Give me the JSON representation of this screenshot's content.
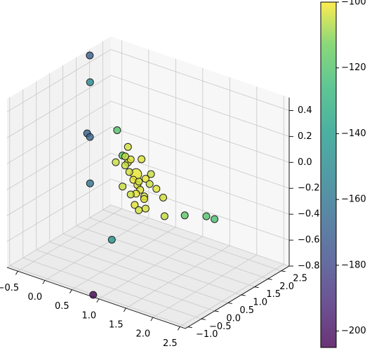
{
  "chart_data": {
    "type": "scatter",
    "projection": "3d",
    "title": "",
    "xlabel": "",
    "ylabel": "",
    "zlabel": "",
    "grid": true,
    "colormap": "viridis",
    "marker_edge_color": "#222222",
    "x_ticks": [
      "−0.5",
      "0.0",
      "0.5",
      "1.0",
      "1.5",
      "2.0",
      "2.5"
    ],
    "y_ticks": [
      "−1.0",
      "−0.5",
      "0.0",
      "0.5",
      "1.0",
      "1.5",
      "2.0",
      "2.5"
    ],
    "z_ticks": [
      "−0.8",
      "−0.6",
      "−0.4",
      "−0.2",
      "0.0",
      "0.2",
      "0.4"
    ],
    "xlim": [
      -0.7,
      2.6
    ],
    "ylim": [
      -1.1,
      2.8
    ],
    "zlim": [
      -0.8,
      0.5
    ],
    "colorbar": {
      "range": [
        -205,
        -100
      ],
      "ticks": [
        "−100",
        "−120",
        "−140",
        "−160",
        "−180",
        "−200"
      ],
      "tick_values": [
        -100,
        -120,
        -140,
        -160,
        -180,
        -200
      ]
    },
    "points": [
      {
        "x": -0.45,
        "y": 1.5,
        "z": 0.55,
        "c": -170,
        "s": 1
      },
      {
        "x": -0.05,
        "y": 0.7,
        "z": 0.5,
        "c": -150,
        "s": 1
      },
      {
        "x": 0.5,
        "y": 0.6,
        "z": 0.22,
        "c": -120,
        "s": 1
      },
      {
        "x": 0.55,
        "y": 0.7,
        "z": 0.02,
        "c": -118,
        "s": 1
      },
      {
        "x": -0.35,
        "y": 1.2,
        "z": 0.0,
        "c": -170,
        "s": 1
      },
      {
        "x": -0.3,
        "y": 1.2,
        "z": -0.02,
        "c": -168,
        "s": 1
      },
      {
        "x": -0.1,
        "y": 0.8,
        "z": -0.3,
        "c": -160,
        "s": 1
      },
      {
        "x": 0.5,
        "y": 0.4,
        "z": -0.6,
        "c": -145,
        "s": 1
      },
      {
        "x": 0.6,
        "y": -0.5,
        "z": -0.9,
        "c": -205,
        "s": 1
      },
      {
        "x": 1.9,
        "y": 0.3,
        "z": -0.2,
        "c": -118,
        "s": 1
      },
      {
        "x": 2.3,
        "y": 0.3,
        "z": -0.15,
        "c": -120,
        "s": 1
      },
      {
        "x": 2.45,
        "y": 0.3,
        "z": -0.15,
        "c": -122,
        "s": 1
      },
      {
        "x": 0.9,
        "y": 0.5,
        "z": -0.05,
        "c": -102,
        "s": 2.5
      },
      {
        "x": 0.7,
        "y": 0.6,
        "z": 0.0,
        "c": -104,
        "s": 1
      },
      {
        "x": 0.8,
        "y": 0.5,
        "z": 0.05,
        "c": -103,
        "s": 1
      },
      {
        "x": 0.65,
        "y": 0.6,
        "z": -0.03,
        "c": -105,
        "s": 1
      },
      {
        "x": 0.75,
        "y": 0.55,
        "z": -0.06,
        "c": -104,
        "s": 1
      },
      {
        "x": 0.6,
        "y": 0.7,
        "z": 0.02,
        "c": -106,
        "s": 1
      },
      {
        "x": 0.85,
        "y": 0.5,
        "z": -0.1,
        "c": -102,
        "s": 1
      },
      {
        "x": 0.95,
        "y": 0.45,
        "z": -0.12,
        "c": -103,
        "s": 1
      },
      {
        "x": 1.0,
        "y": 0.4,
        "z": -0.08,
        "c": -104,
        "s": 1
      },
      {
        "x": 1.1,
        "y": 0.45,
        "z": -0.05,
        "c": -102,
        "s": 1
      },
      {
        "x": 1.2,
        "y": 0.4,
        "z": -0.07,
        "c": -105,
        "s": 1
      },
      {
        "x": 1.35,
        "y": 0.35,
        "z": -0.08,
        "c": -103,
        "s": 1
      },
      {
        "x": 1.5,
        "y": 0.3,
        "z": -0.12,
        "c": -104,
        "s": 1
      },
      {
        "x": 1.55,
        "y": 0.25,
        "z": -0.25,
        "c": -106,
        "s": 1
      },
      {
        "x": 1.0,
        "y": 0.45,
        "z": -0.15,
        "c": -103,
        "s": 1
      },
      {
        "x": 1.1,
        "y": 0.4,
        "z": -0.18,
        "c": -104,
        "s": 1
      },
      {
        "x": 0.9,
        "y": 0.5,
        "z": -0.2,
        "c": -102,
        "s": 1
      },
      {
        "x": 0.8,
        "y": 0.5,
        "z": -0.22,
        "c": -105,
        "s": 1
      },
      {
        "x": 0.85,
        "y": 0.55,
        "z": -0.3,
        "c": -103,
        "s": 1
      },
      {
        "x": 1.1,
        "y": 0.45,
        "z": -0.28,
        "c": -104,
        "s": 1
      },
      {
        "x": 0.6,
        "y": 0.6,
        "z": -0.2,
        "c": -105,
        "s": 1
      },
      {
        "x": 1.0,
        "y": 0.5,
        "z": 0.08,
        "c": -103,
        "s": 1
      },
      {
        "x": 0.7,
        "y": 0.6,
        "z": 0.12,
        "c": -104,
        "s": 1
      },
      {
        "x": 1.2,
        "y": 0.45,
        "z": 0.0,
        "c": -105,
        "s": 1
      },
      {
        "x": 1.05,
        "y": 0.5,
        "z": -0.22,
        "c": -103,
        "s": 1
      },
      {
        "x": 0.95,
        "y": 0.5,
        "z": -0.32,
        "c": -104,
        "s": 1
      },
      {
        "x": 0.45,
        "y": 0.65,
        "z": -0.04,
        "c": -105,
        "s": 1
      }
    ]
  }
}
